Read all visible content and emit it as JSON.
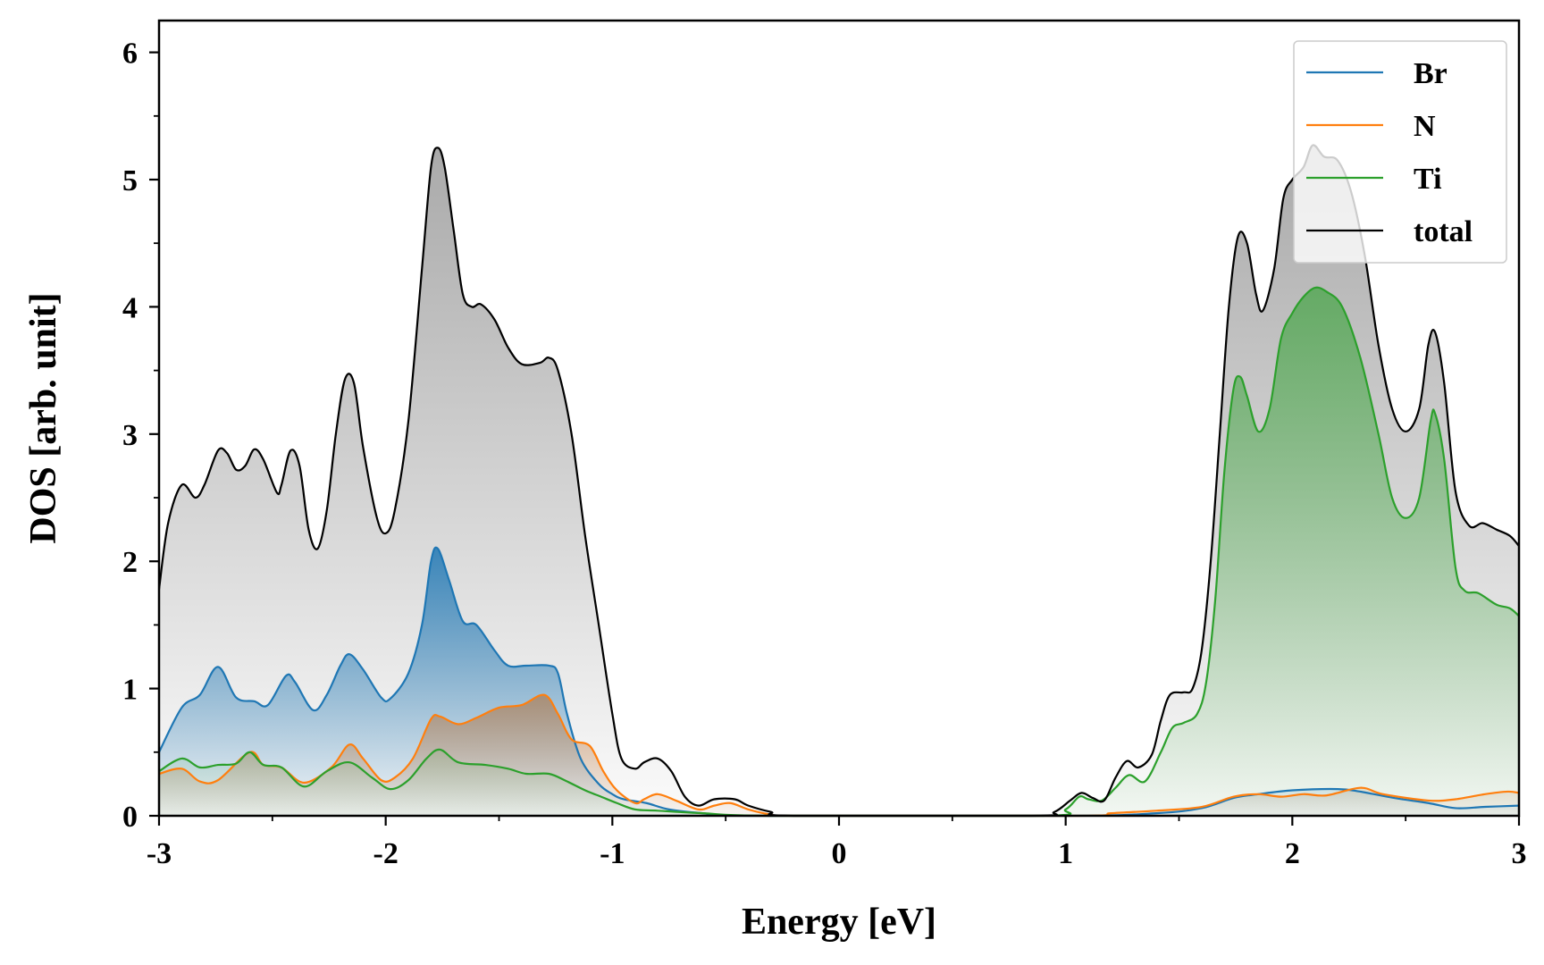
{
  "chart_data": {
    "type": "line",
    "title": "",
    "xlabel": "Energy [eV]",
    "ylabel": "DOS [arb. unit]",
    "xlim": [
      -3,
      3
    ],
    "ylim": [
      0,
      6.25
    ],
    "x_ticks": [
      -3,
      -2,
      -1,
      0,
      1,
      2,
      3
    ],
    "x_tick_labels": [
      "-3",
      "-2",
      "-1",
      "0",
      "1",
      "2",
      "3"
    ],
    "y_ticks": [
      0,
      1,
      2,
      3,
      4,
      5,
      6
    ],
    "y_tick_labels": [
      "0",
      "1",
      "2",
      "3",
      "4",
      "5",
      "6"
    ],
    "grid": false,
    "legend_position": "top-right",
    "series": [
      {
        "name": "Br",
        "color": "#1f77b4",
        "filled": true,
        "points": [
          [
            -3,
            0.5
          ],
          [
            -2.9,
            0.85
          ],
          [
            -2.82,
            0.95
          ],
          [
            -2.74,
            1.17
          ],
          [
            -2.66,
            0.93
          ],
          [
            -2.58,
            0.9
          ],
          [
            -2.52,
            0.87
          ],
          [
            -2.44,
            1.1
          ],
          [
            -2.4,
            1.05
          ],
          [
            -2.32,
            0.83
          ],
          [
            -2.26,
            0.95
          ],
          [
            -2.2,
            1.18
          ],
          [
            -2.16,
            1.27
          ],
          [
            -2.1,
            1.15
          ],
          [
            -2.02,
            0.93
          ],
          [
            -1.98,
            0.92
          ],
          [
            -1.9,
            1.12
          ],
          [
            -1.84,
            1.5
          ],
          [
            -1.8,
            2.0
          ],
          [
            -1.77,
            2.1
          ],
          [
            -1.72,
            1.85
          ],
          [
            -1.66,
            1.53
          ],
          [
            -1.6,
            1.5
          ],
          [
            -1.52,
            1.3
          ],
          [
            -1.46,
            1.18
          ],
          [
            -1.38,
            1.18
          ],
          [
            -1.28,
            1.18
          ],
          [
            -1.24,
            1.12
          ],
          [
            -1.2,
            0.8
          ],
          [
            -1.14,
            0.45
          ],
          [
            -1.06,
            0.25
          ],
          [
            -1.0,
            0.17
          ],
          [
            -0.95,
            0.13
          ],
          [
            -0.85,
            0.1
          ],
          [
            -0.75,
            0.05
          ],
          [
            -0.6,
            0.02
          ],
          [
            -0.4,
            0.0
          ],
          [
            1.0,
            0.0
          ],
          [
            1.4,
            0.02
          ],
          [
            1.6,
            0.06
          ],
          [
            1.74,
            0.14
          ],
          [
            1.85,
            0.17
          ],
          [
            2.0,
            0.2
          ],
          [
            2.2,
            0.21
          ],
          [
            2.3,
            0.19
          ],
          [
            2.45,
            0.14
          ],
          [
            2.6,
            0.1
          ],
          [
            2.72,
            0.06
          ],
          [
            2.85,
            0.07
          ],
          [
            3.0,
            0.08
          ]
        ]
      },
      {
        "name": "N",
        "color": "#ff7f0e",
        "filled": true,
        "points": [
          [
            -3,
            0.33
          ],
          [
            -2.9,
            0.37
          ],
          [
            -2.82,
            0.27
          ],
          [
            -2.74,
            0.28
          ],
          [
            -2.6,
            0.5
          ],
          [
            -2.54,
            0.4
          ],
          [
            -2.46,
            0.38
          ],
          [
            -2.36,
            0.26
          ],
          [
            -2.24,
            0.38
          ],
          [
            -2.16,
            0.56
          ],
          [
            -2.1,
            0.45
          ],
          [
            -2.02,
            0.28
          ],
          [
            -1.96,
            0.3
          ],
          [
            -1.88,
            0.45
          ],
          [
            -1.8,
            0.76
          ],
          [
            -1.76,
            0.78
          ],
          [
            -1.68,
            0.72
          ],
          [
            -1.6,
            0.77
          ],
          [
            -1.5,
            0.85
          ],
          [
            -1.4,
            0.87
          ],
          [
            -1.3,
            0.95
          ],
          [
            -1.24,
            0.8
          ],
          [
            -1.18,
            0.6
          ],
          [
            -1.1,
            0.55
          ],
          [
            -1.04,
            0.35
          ],
          [
            -0.98,
            0.2
          ],
          [
            -0.9,
            0.1
          ],
          [
            -0.86,
            0.13
          ],
          [
            -0.8,
            0.17
          ],
          [
            -0.72,
            0.12
          ],
          [
            -0.62,
            0.05
          ],
          [
            -0.55,
            0.08
          ],
          [
            -0.48,
            0.1
          ],
          [
            -0.4,
            0.05
          ],
          [
            -0.3,
            0.01
          ],
          [
            -0.2,
            0.0
          ],
          [
            1.05,
            0.0
          ],
          [
            1.2,
            0.02
          ],
          [
            1.4,
            0.04
          ],
          [
            1.6,
            0.07
          ],
          [
            1.74,
            0.15
          ],
          [
            1.85,
            0.17
          ],
          [
            1.95,
            0.15
          ],
          [
            2.05,
            0.17
          ],
          [
            2.15,
            0.16
          ],
          [
            2.3,
            0.22
          ],
          [
            2.4,
            0.17
          ],
          [
            2.6,
            0.12
          ],
          [
            2.72,
            0.13
          ],
          [
            2.85,
            0.17
          ],
          [
            2.95,
            0.19
          ],
          [
            3.0,
            0.18
          ]
        ]
      },
      {
        "name": "Ti",
        "color": "#2ca02c",
        "filled": true,
        "points": [
          [
            -3,
            0.35
          ],
          [
            -2.9,
            0.45
          ],
          [
            -2.82,
            0.38
          ],
          [
            -2.74,
            0.4
          ],
          [
            -2.66,
            0.41
          ],
          [
            -2.6,
            0.5
          ],
          [
            -2.54,
            0.4
          ],
          [
            -2.46,
            0.38
          ],
          [
            -2.36,
            0.23
          ],
          [
            -2.26,
            0.35
          ],
          [
            -2.16,
            0.42
          ],
          [
            -2.06,
            0.3
          ],
          [
            -1.98,
            0.21
          ],
          [
            -1.9,
            0.28
          ],
          [
            -1.82,
            0.45
          ],
          [
            -1.76,
            0.52
          ],
          [
            -1.68,
            0.42
          ],
          [
            -1.56,
            0.4
          ],
          [
            -1.46,
            0.37
          ],
          [
            -1.38,
            0.33
          ],
          [
            -1.28,
            0.33
          ],
          [
            -1.2,
            0.27
          ],
          [
            -1.12,
            0.2
          ],
          [
            -1.05,
            0.15
          ],
          [
            -0.98,
            0.1
          ],
          [
            -0.9,
            0.05
          ],
          [
            -0.8,
            0.04
          ],
          [
            -0.6,
            0.02
          ],
          [
            -0.3,
            0.0
          ],
          [
            0.9,
            0.0
          ],
          [
            1.0,
            0.05
          ],
          [
            1.06,
            0.15
          ],
          [
            1.1,
            0.13
          ],
          [
            1.16,
            0.12
          ],
          [
            1.22,
            0.22
          ],
          [
            1.28,
            0.32
          ],
          [
            1.35,
            0.27
          ],
          [
            1.42,
            0.5
          ],
          [
            1.47,
            0.69
          ],
          [
            1.52,
            0.73
          ],
          [
            1.58,
            0.8
          ],
          [
            1.62,
            1.05
          ],
          [
            1.66,
            1.7
          ],
          [
            1.7,
            2.7
          ],
          [
            1.74,
            3.35
          ],
          [
            1.77,
            3.45
          ],
          [
            1.8,
            3.3
          ],
          [
            1.85,
            3.02
          ],
          [
            1.9,
            3.2
          ],
          [
            1.95,
            3.75
          ],
          [
            2.0,
            3.95
          ],
          [
            2.05,
            4.08
          ],
          [
            2.1,
            4.15
          ],
          [
            2.15,
            4.12
          ],
          [
            2.22,
            4.0
          ],
          [
            2.3,
            3.6
          ],
          [
            2.38,
            3.0
          ],
          [
            2.44,
            2.5
          ],
          [
            2.5,
            2.34
          ],
          [
            2.56,
            2.5
          ],
          [
            2.61,
            3.1
          ],
          [
            2.63,
            3.16
          ],
          [
            2.67,
            2.8
          ],
          [
            2.72,
            1.95
          ],
          [
            2.76,
            1.77
          ],
          [
            2.82,
            1.75
          ],
          [
            2.9,
            1.66
          ],
          [
            2.96,
            1.63
          ],
          [
            3.0,
            1.57
          ]
        ]
      },
      {
        "name": "total",
        "color": "#000000",
        "filled": true,
        "points": [
          [
            -3,
            1.78
          ],
          [
            -2.96,
            2.3
          ],
          [
            -2.9,
            2.6
          ],
          [
            -2.84,
            2.5
          ],
          [
            -2.8,
            2.6
          ],
          [
            -2.74,
            2.87
          ],
          [
            -2.7,
            2.85
          ],
          [
            -2.66,
            2.72
          ],
          [
            -2.62,
            2.75
          ],
          [
            -2.58,
            2.88
          ],
          [
            -2.54,
            2.8
          ],
          [
            -2.48,
            2.54
          ],
          [
            -2.46,
            2.6
          ],
          [
            -2.42,
            2.87
          ],
          [
            -2.38,
            2.75
          ],
          [
            -2.34,
            2.25
          ],
          [
            -2.3,
            2.1
          ],
          [
            -2.26,
            2.4
          ],
          [
            -2.22,
            3.0
          ],
          [
            -2.18,
            3.43
          ],
          [
            -2.14,
            3.4
          ],
          [
            -2.1,
            2.9
          ],
          [
            -2.04,
            2.35
          ],
          [
            -2.0,
            2.22
          ],
          [
            -1.96,
            2.4
          ],
          [
            -1.9,
            3.1
          ],
          [
            -1.84,
            4.3
          ],
          [
            -1.8,
            5.1
          ],
          [
            -1.77,
            5.25
          ],
          [
            -1.74,
            5.1
          ],
          [
            -1.7,
            4.6
          ],
          [
            -1.66,
            4.1
          ],
          [
            -1.62,
            4.0
          ],
          [
            -1.58,
            4.02
          ],
          [
            -1.52,
            3.9
          ],
          [
            -1.46,
            3.68
          ],
          [
            -1.4,
            3.55
          ],
          [
            -1.32,
            3.56
          ],
          [
            -1.28,
            3.6
          ],
          [
            -1.24,
            3.5
          ],
          [
            -1.18,
            3.0
          ],
          [
            -1.12,
            2.2
          ],
          [
            -1.06,
            1.5
          ],
          [
            -1.0,
            0.8
          ],
          [
            -0.96,
            0.45
          ],
          [
            -0.9,
            0.37
          ],
          [
            -0.86,
            0.42
          ],
          [
            -0.8,
            0.45
          ],
          [
            -0.74,
            0.35
          ],
          [
            -0.68,
            0.15
          ],
          [
            -0.62,
            0.08
          ],
          [
            -0.55,
            0.13
          ],
          [
            -0.46,
            0.13
          ],
          [
            -0.4,
            0.08
          ],
          [
            -0.3,
            0.03
          ],
          [
            -0.2,
            0.0
          ],
          [
            0.85,
            0.0
          ],
          [
            0.95,
            0.03
          ],
          [
            1.02,
            0.12
          ],
          [
            1.07,
            0.18
          ],
          [
            1.12,
            0.14
          ],
          [
            1.17,
            0.12
          ],
          [
            1.22,
            0.3
          ],
          [
            1.27,
            0.43
          ],
          [
            1.32,
            0.38
          ],
          [
            1.38,
            0.48
          ],
          [
            1.42,
            0.75
          ],
          [
            1.46,
            0.95
          ],
          [
            1.52,
            0.97
          ],
          [
            1.56,
            1.0
          ],
          [
            1.6,
            1.3
          ],
          [
            1.64,
            2.0
          ],
          [
            1.68,
            3.0
          ],
          [
            1.72,
            4.0
          ],
          [
            1.76,
            4.55
          ],
          [
            1.8,
            4.5
          ],
          [
            1.84,
            4.1
          ],
          [
            1.87,
            3.97
          ],
          [
            1.92,
            4.3
          ],
          [
            1.96,
            4.85
          ],
          [
            2.0,
            5.0
          ],
          [
            2.05,
            5.1
          ],
          [
            2.09,
            5.27
          ],
          [
            2.14,
            5.18
          ],
          [
            2.2,
            5.15
          ],
          [
            2.26,
            4.9
          ],
          [
            2.32,
            4.4
          ],
          [
            2.38,
            3.7
          ],
          [
            2.44,
            3.2
          ],
          [
            2.5,
            3.02
          ],
          [
            2.56,
            3.2
          ],
          [
            2.6,
            3.7
          ],
          [
            2.63,
            3.8
          ],
          [
            2.67,
            3.4
          ],
          [
            2.72,
            2.55
          ],
          [
            2.78,
            2.28
          ],
          [
            2.84,
            2.3
          ],
          [
            2.9,
            2.25
          ],
          [
            2.96,
            2.2
          ],
          [
            3.0,
            2.12
          ]
        ]
      }
    ]
  }
}
